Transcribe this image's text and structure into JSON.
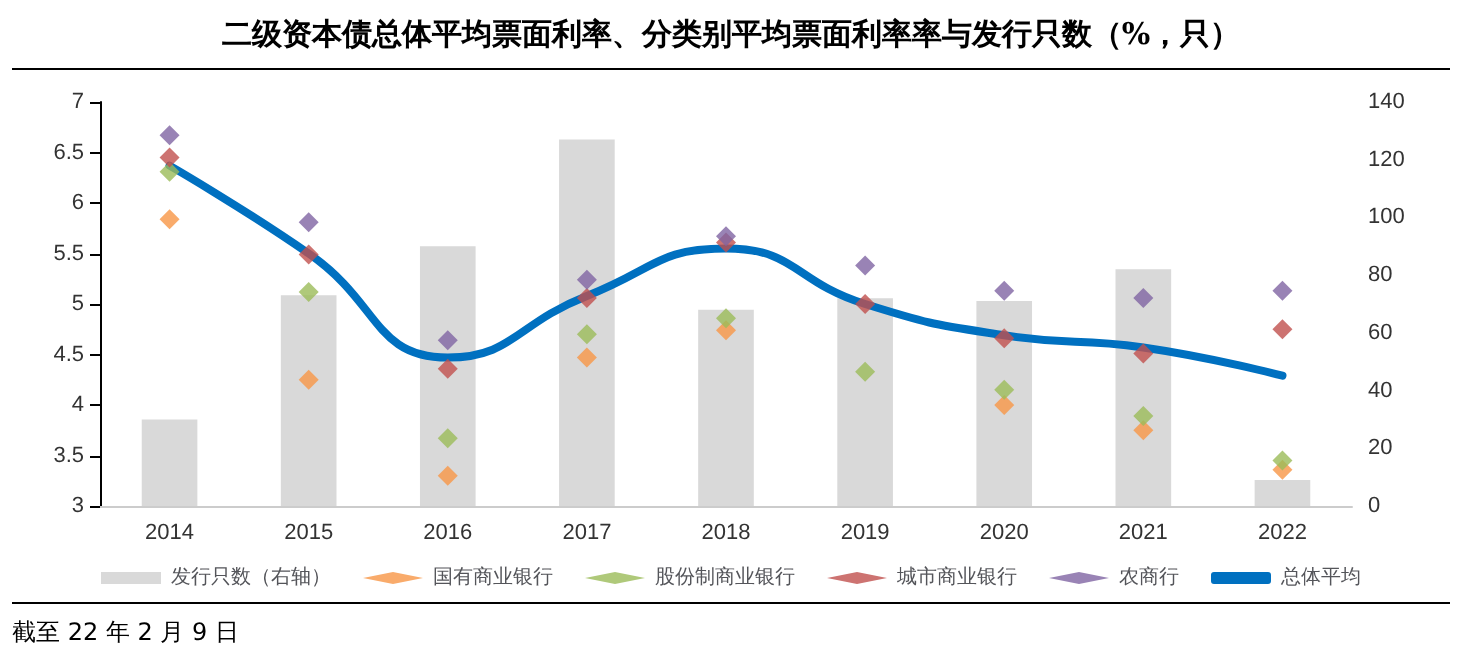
{
  "chart_data": {
    "type": "bar",
    "title": "二级资本债总体平均票面利率、分类别平均票面利率率与发行只数（%，只）",
    "categories": [
      "2014",
      "2015",
      "2016",
      "2017",
      "2018",
      "2019",
      "2020",
      "2021",
      "2022"
    ],
    "series": [
      {
        "name": "发行只数（右轴）",
        "axis": "y2",
        "color": "#d9d9d9",
        "values": [
          30,
          73,
          90,
          127,
          68,
          72,
          71,
          82,
          9
        ]
      },
      {
        "name": "国有商业银行",
        "type": "scatter",
        "marker": "diamond",
        "color": "#f79646",
        "values": [
          5.84,
          4.25,
          3.3,
          4.47,
          4.74,
          null,
          4.0,
          3.75,
          3.36
        ]
      },
      {
        "name": "股份制商业银行",
        "type": "scatter",
        "marker": "diamond",
        "color": "#9bbb59",
        "values": [
          6.31,
          5.12,
          3.67,
          4.7,
          4.86,
          4.33,
          4.15,
          3.89,
          3.45
        ]
      },
      {
        "name": "城市商业银行",
        "type": "scatter",
        "marker": "diamond",
        "color": "#c0504d",
        "values": [
          6.45,
          5.49,
          4.36,
          5.06,
          5.61,
          5.0,
          4.66,
          4.51,
          4.75
        ]
      },
      {
        "name": "农商行",
        "type": "scatter",
        "marker": "diamond",
        "color": "#8064a2",
        "values": [
          6.67,
          5.81,
          4.64,
          5.24,
          5.67,
          5.38,
          5.13,
          5.06,
          5.13
        ]
      },
      {
        "name": "总体平均",
        "type": "line",
        "marker": "none",
        "color": "#0070c0",
        "values": [
          6.37,
          5.5,
          4.47,
          5.08,
          5.55,
          5.0,
          4.69,
          4.57,
          4.29
        ]
      }
    ],
    "ylim": [
      3,
      7
    ],
    "yticks": [
      3,
      3.5,
      4,
      4.5,
      5,
      5.5,
      6,
      6.5,
      7
    ],
    "y2lim": [
      0,
      140
    ],
    "y2ticks": [
      0,
      20,
      40,
      60,
      80,
      100,
      120,
      140
    ],
    "grid": false,
    "legend": "bottom",
    "annotations": [
      "截至 22 年 2 月 9 日"
    ]
  }
}
